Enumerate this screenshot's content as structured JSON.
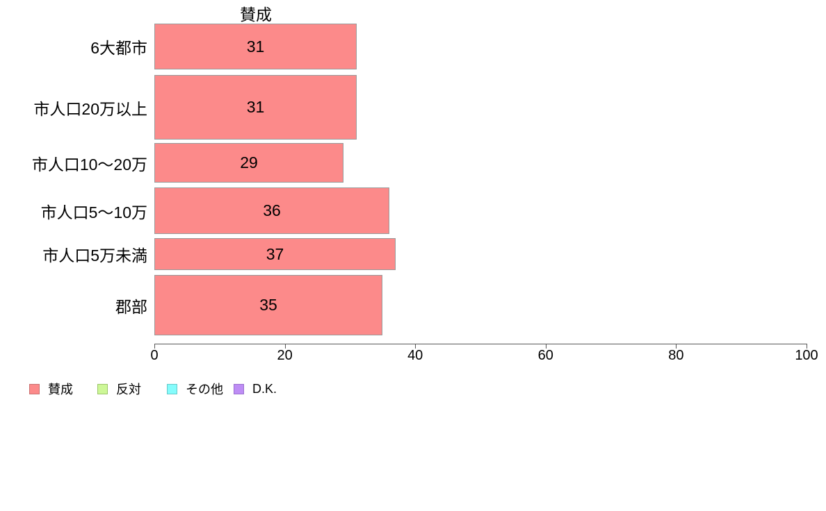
{
  "chart_data": {
    "type": "bar",
    "orientation": "horizontal",
    "title": "賛成",
    "categories": [
      "6大都市",
      "市人口20万以上",
      "市人口10〜20万",
      "市人口5〜10万",
      "市人口5万未満",
      "郡部"
    ],
    "values": [
      31,
      31,
      29,
      36,
      37,
      35
    ],
    "xlabel": "",
    "ylabel": "",
    "xlim": [
      0,
      100
    ],
    "x_ticks": [
      0,
      20,
      40,
      60,
      80,
      100
    ],
    "grid": false,
    "bar_fill_color": "#FC8A8A",
    "bar_border_color": "#999999",
    "value_labels_inside_bars": true,
    "legend_position": "bottom",
    "legend": [
      {
        "label": "賛成",
        "color": "#FC8A8A",
        "border": "#C97171"
      },
      {
        "label": "反対",
        "color": "#CDF797",
        "border": "#9CC46A"
      },
      {
        "label": "その他",
        "color": "#85FCFC",
        "border": "#66C9C9"
      },
      {
        "label": "D.K.",
        "color": "#BE8DF5",
        "border": "#9A6FCE"
      }
    ]
  }
}
